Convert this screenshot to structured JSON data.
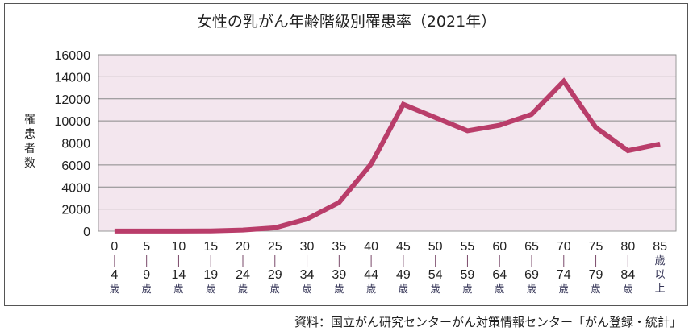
{
  "chart_data": {
    "type": "line",
    "title": "女性の乳がん年齢階級別罹患率（2021年）",
    "ylabel": "罹患者数",
    "xlabel": "",
    "categories": [
      {
        "from": "0",
        "to": "4",
        "unit": "歳"
      },
      {
        "from": "5",
        "to": "9",
        "unit": "歳"
      },
      {
        "from": "10",
        "to": "14",
        "unit": "歳"
      },
      {
        "from": "15",
        "to": "19",
        "unit": "歳"
      },
      {
        "from": "20",
        "to": "24",
        "unit": "歳"
      },
      {
        "from": "25",
        "to": "29",
        "unit": "歳"
      },
      {
        "from": "30",
        "to": "34",
        "unit": "歳"
      },
      {
        "from": "35",
        "to": "39",
        "unit": "歳"
      },
      {
        "from": "40",
        "to": "44",
        "unit": "歳"
      },
      {
        "from": "45",
        "to": "49",
        "unit": "歳"
      },
      {
        "from": "50",
        "to": "54",
        "unit": "歳"
      },
      {
        "from": "55",
        "to": "59",
        "unit": "歳"
      },
      {
        "from": "60",
        "to": "64",
        "unit": "歳"
      },
      {
        "from": "65",
        "to": "69",
        "unit": "歳"
      },
      {
        "from": "70",
        "to": "74",
        "unit": "歳"
      },
      {
        "from": "75",
        "to": "79",
        "unit": "歳"
      },
      {
        "from": "80",
        "to": "84",
        "unit": "歳"
      },
      {
        "from": "85",
        "to": "",
        "unit": "歳以上"
      }
    ],
    "series": [
      {
        "name": "罹患者数",
        "color": "#b93d6a",
        "values": [
          10,
          10,
          10,
          20,
          100,
          300,
          1100,
          2600,
          6100,
          11500,
          10300,
          9100,
          9600,
          10600,
          13600,
          9400,
          7300,
          7900
        ]
      }
    ],
    "ylim": [
      0,
      16000
    ],
    "yticks": [
      "0",
      "2000",
      "4000",
      "6000",
      "8000",
      "10000",
      "12000",
      "14000",
      "16000"
    ],
    "grid": true,
    "plot_bg": "#f3e6ee"
  },
  "source": "資料：国立がん研究センターがん対策情報センター「がん登録・統計」"
}
